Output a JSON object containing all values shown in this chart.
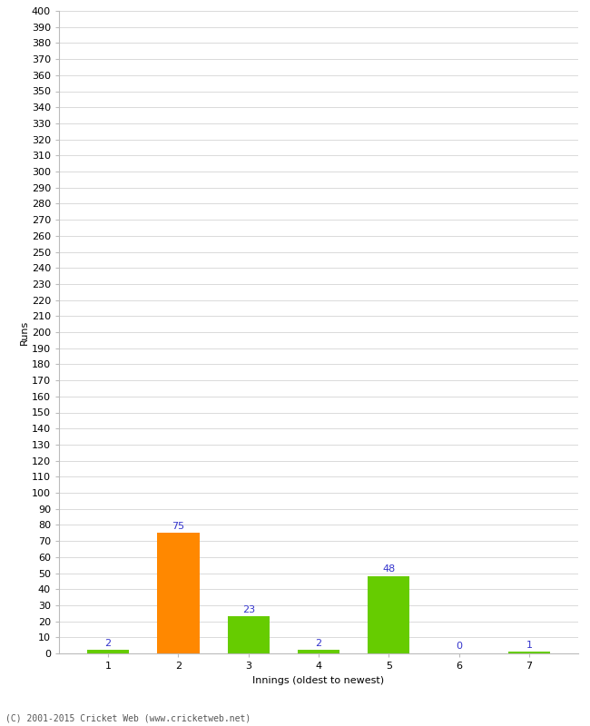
{
  "categories": [
    "1",
    "2",
    "3",
    "4",
    "5",
    "6",
    "7"
  ],
  "values": [
    2,
    75,
    23,
    2,
    48,
    0,
    1
  ],
  "bar_colors": [
    "#66cc00",
    "#ff8800",
    "#66cc00",
    "#66cc00",
    "#66cc00",
    "#66cc00",
    "#66cc00"
  ],
  "xlabel": "Innings (oldest to newest)",
  "ylabel": "Runs",
  "ylim": [
    0,
    400
  ],
  "background_color": "#ffffff",
  "grid_color": "#cccccc",
  "label_color": "#3333cc",
  "footer": "(C) 2001-2015 Cricket Web (www.cricketweb.net)",
  "label_fontsize": 8,
  "axis_tick_fontsize": 8,
  "ylabel_fontsize": 8,
  "xlabel_fontsize": 8,
  "footer_fontsize": 7
}
